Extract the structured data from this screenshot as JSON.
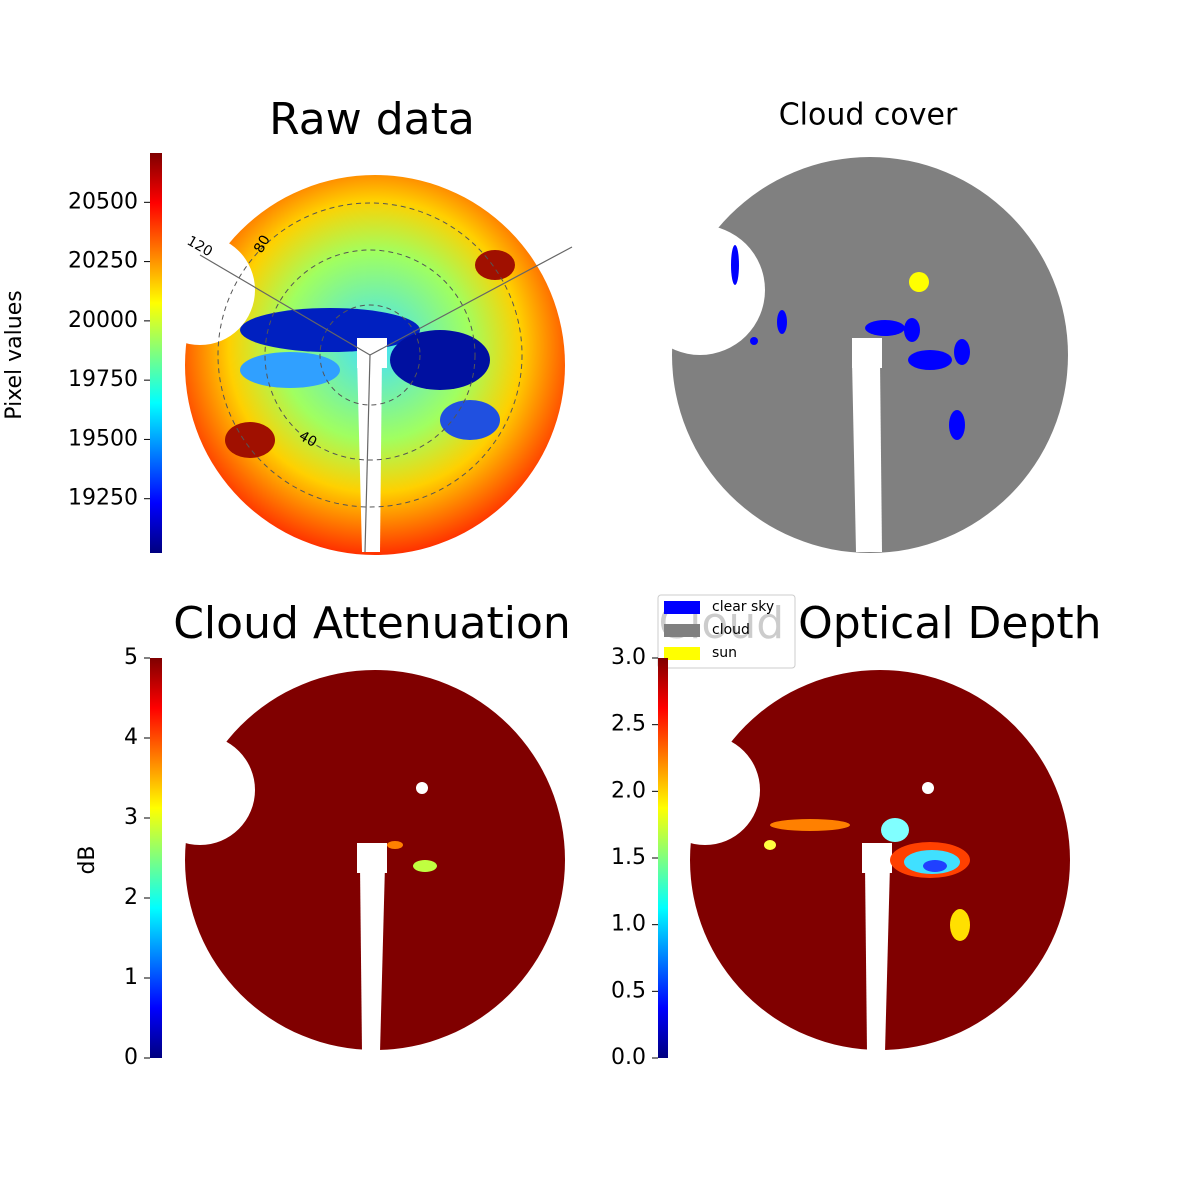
{
  "chart_data": [
    {
      "type": "image",
      "title": "Raw data",
      "colormap": "jet",
      "colorbar": {
        "label": "Pixel values",
        "clim": [
          19021,
          20708
        ],
        "ticks": [
          19250,
          19500,
          19750,
          20000,
          20250,
          20500
        ]
      },
      "polar_labels": [
        "120",
        "80",
        "40"
      ]
    },
    {
      "type": "image",
      "title": "Cloud cover",
      "legend": [
        {
          "name": "clear sky",
          "color": "#0000ff"
        },
        {
          "name": "cloud",
          "color": "#808080"
        },
        {
          "name": "sun",
          "color": "#ffff00"
        }
      ]
    },
    {
      "type": "image",
      "title": "Cloud Attenuation",
      "colormap": "jet",
      "colorbar": {
        "label": "dB",
        "clim": [
          0,
          5
        ],
        "ticks": [
          0,
          1,
          2,
          3,
          4,
          5
        ]
      }
    },
    {
      "type": "image",
      "title": "Cloud Optical Depth",
      "colormap": "jet",
      "colorbar": {
        "clim": [
          0,
          3
        ],
        "ticks": [
          {
            "value": 0,
            "label": "0.0"
          },
          {
            "value": 0.5,
            "label": "0.5"
          },
          {
            "value": 1,
            "label": "1.0"
          },
          {
            "value": 1.5,
            "label": "1.5"
          },
          {
            "value": 2,
            "label": "2.0"
          },
          {
            "value": 2.5,
            "label": "2.5"
          },
          {
            "value": 3,
            "label": "3.0"
          }
        ]
      }
    }
  ]
}
